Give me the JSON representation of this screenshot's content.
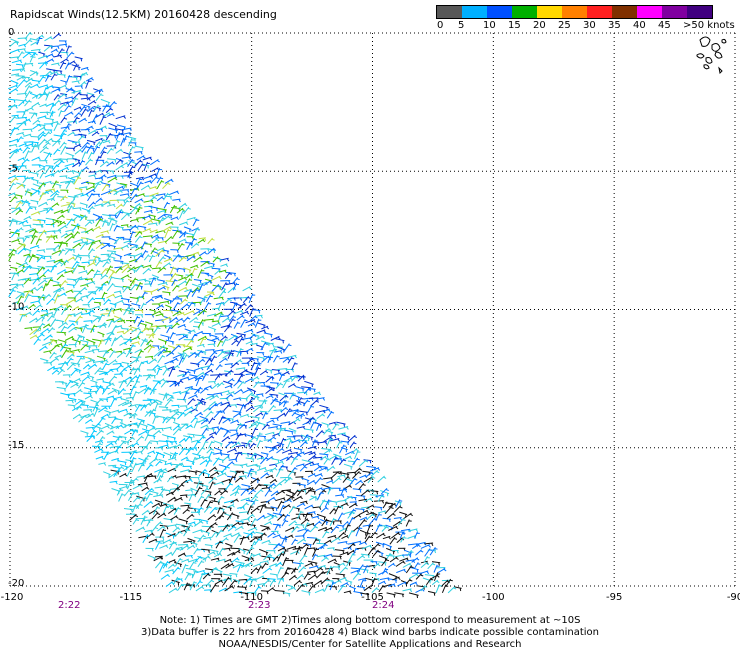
{
  "title": "Rapidscat Winds(12.5KM) 20160428 descending",
  "colorbar": {
    "labels": [
      "0",
      "5",
      "10",
      "15",
      "20",
      "25",
      "30",
      "35",
      "40",
      "45",
      ">50 knots"
    ],
    "colors": [
      "#585858",
      "#00b0ff",
      "#0050ff",
      "#00b000",
      "#ffd800",
      "#ff8000",
      "#ff2020",
      "#803000",
      "#ff00ff",
      "#8000a0",
      "#400080"
    ]
  },
  "axes": {
    "longitudes": [
      "-120",
      "-115",
      "-110",
      "-105",
      "-100",
      "-95",
      "-90"
    ],
    "latitudes": [
      "0",
      "-5",
      "-10",
      "-15",
      "-20"
    ]
  },
  "times": [
    "2:22",
    "2:23",
    "2:24"
  ],
  "notes": {
    "line1": "Note: 1) Times are GMT 2)Times along bottom correspond to measurement at ~10S",
    "line2": "3)Data buffer is 22 hrs from 20160428 4) Black wind barbs indicate possible contamination",
    "line3": "NOAA/NESDIS/Center for Satellite Applications and Research"
  },
  "swath": {
    "colors": [
      "#00c8ff",
      "#30d0e0",
      "#0070ff",
      "#0030d0",
      "#40c000",
      "#c0e040",
      "#101010"
    ]
  }
}
